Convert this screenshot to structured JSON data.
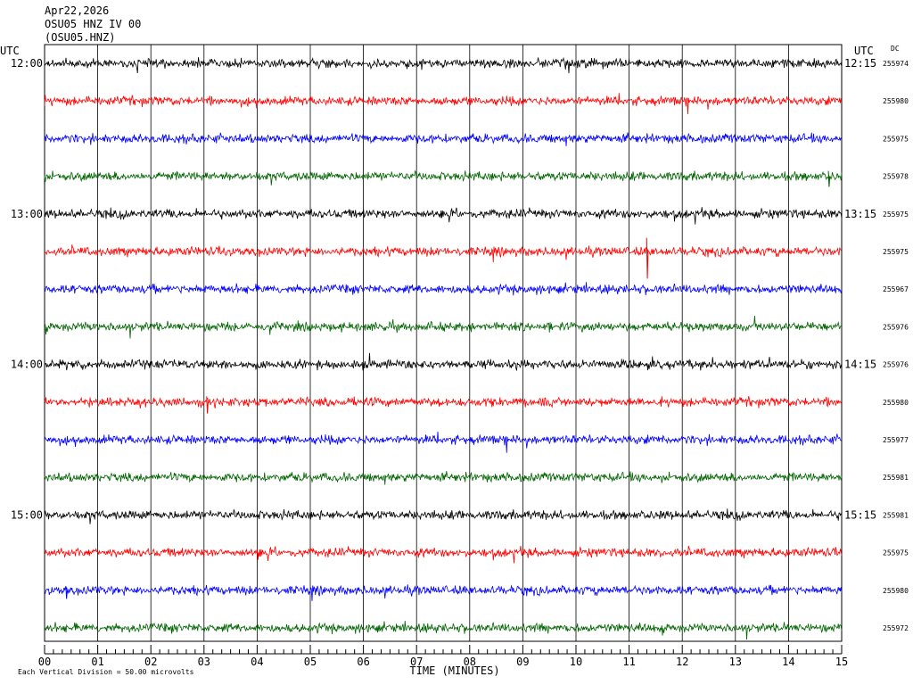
{
  "header": {
    "date": "Apr22,2026",
    "station": "OSU05 HNZ IV 00",
    "code": "(OSU05.HNZ)"
  },
  "chart_data": {
    "type": "line",
    "title": "",
    "xlabel": "TIME (MINUTES)",
    "ylabel": "",
    "xlim": [
      0,
      15
    ],
    "x_ticks": [
      "00",
      "01",
      "02",
      "03",
      "04",
      "05",
      "06",
      "07",
      "08",
      "09",
      "10",
      "11",
      "12",
      "13",
      "14",
      "15"
    ],
    "left_axis_label": "UTC",
    "right_axis_label": "UTC",
    "right_column_header": "DC",
    "left_hour_labels": [
      {
        "row": 0,
        "text": "12:00"
      },
      {
        "row": 4,
        "text": "13:00"
      },
      {
        "row": 8,
        "text": "14:00"
      },
      {
        "row": 12,
        "text": "15:00"
      }
    ],
    "right_time_labels": [
      {
        "row": 0,
        "text": "12:15"
      },
      {
        "row": 4,
        "text": "13:15"
      },
      {
        "row": 8,
        "text": "14:15"
      },
      {
        "row": 12,
        "text": "15:15"
      }
    ],
    "trace_colors": [
      "#000000",
      "#ff0000",
      "#0000ff",
      "#006400"
    ],
    "dc_values": [
      "255974",
      "255980",
      "255975",
      "255978",
      "255975",
      "255975",
      "255967",
      "255976",
      "255976",
      "255980",
      "255977",
      "255981",
      "255981",
      "255975",
      "255980",
      "255972"
    ],
    "events": [
      {
        "row": 5,
        "minute": 11.33,
        "amplitude": 3.8
      },
      {
        "row": 9,
        "minute": 3.05,
        "amplitude": 1.6
      },
      {
        "row": 3,
        "minute": 14.75,
        "amplitude": 1.5
      },
      {
        "row": 14,
        "minute": 0.4,
        "amplitude": 1.2
      },
      {
        "row": 13,
        "minute": 4.0,
        "amplitude": 1.0
      }
    ],
    "footnote": "Each Vertical Division =   50.00 microvolts"
  }
}
